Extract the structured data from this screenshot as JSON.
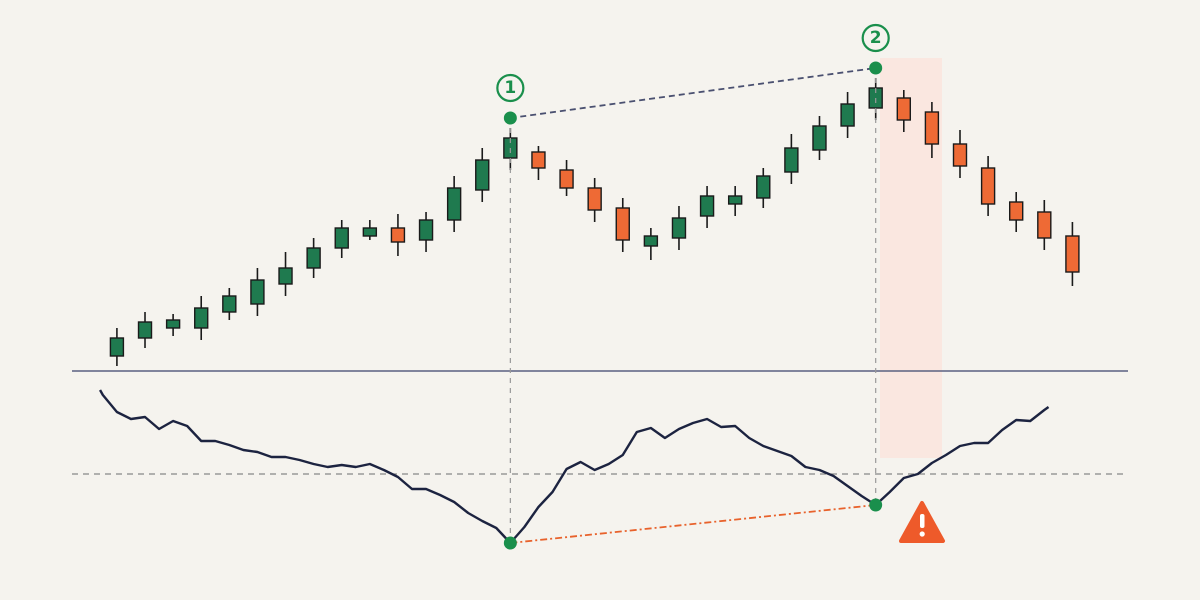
{
  "chart_data": [
    {
      "type": "candlestick",
      "x": [
        0,
        1,
        2,
        3,
        4,
        5,
        6,
        7,
        8,
        9,
        10,
        11,
        12,
        13,
        14,
        15,
        16,
        17,
        18,
        19,
        20,
        21,
        22,
        23,
        24,
        25,
        26,
        27,
        28,
        29,
        30,
        31,
        32,
        33,
        34
      ],
      "open": [
        11,
        15.5,
        18,
        18,
        22,
        24,
        29,
        33,
        38,
        41,
        43,
        40,
        45,
        52.5,
        60.5,
        62,
        57.5,
        53,
        48,
        38.5,
        40.5,
        46,
        49,
        50.5,
        57,
        62.5,
        68.5,
        73,
        75.5,
        72,
        64,
        58,
        49.5,
        47,
        41
      ],
      "high": [
        18,
        22,
        21.5,
        26,
        28,
        33,
        37,
        40.5,
        45,
        45,
        46.5,
        47,
        56,
        63,
        68,
        63.5,
        60,
        55.5,
        50.5,
        43,
        48.5,
        53.5,
        53.5,
        58,
        66.5,
        71,
        77,
        80.5,
        77.5,
        74.5,
        67.5,
        61,
        52,
        50,
        44.5
      ],
      "low": [
        8.5,
        13,
        16,
        15,
        20,
        21,
        26,
        30.5,
        35.5,
        40,
        36,
        37,
        42,
        49.5,
        57.5,
        55,
        51,
        44.5,
        37,
        35,
        37.5,
        43,
        46,
        48,
        54,
        60,
        65.5,
        70,
        67,
        60.5,
        55.5,
        46,
        42,
        37.5,
        28.5
      ],
      "close": [
        15.5,
        19.5,
        20,
        23,
        26,
        30,
        33,
        38,
        43,
        43,
        39.5,
        45,
        53,
        60,
        65.5,
        58,
        53,
        47.5,
        40,
        41,
        45.5,
        51,
        51,
        56,
        63,
        68.5,
        74,
        78,
        70,
        64,
        58.5,
        49,
        45,
        40.5,
        32
      ],
      "up_color": "#1f7a4f",
      "down_color": "#ee6a35",
      "xlim": [
        -4.16,
        38.54
      ],
      "ylim": [
        0,
        90
      ],
      "markers": [
        {
          "label": "1",
          "x": 14,
          "value": 70.5
        },
        {
          "label": "2",
          "x": 27,
          "value": 83
        }
      ],
      "marker_color": "#1a8f4c",
      "divergence_color": "#4a5070"
    },
    {
      "type": "line",
      "x": [
        -0.6,
        -0.5,
        0,
        0.5,
        1,
        1.5,
        2,
        2.5,
        3,
        3.5,
        4,
        4.5,
        5,
        5.5,
        6,
        6.5,
        7,
        7.5,
        8,
        8.5,
        9,
        9.5,
        10,
        10.5,
        11,
        11.5,
        12,
        12.5,
        13,
        13.5,
        14,
        14.5,
        15,
        15.5,
        16,
        16.5,
        17,
        17.5,
        18,
        18.5,
        19,
        19.5,
        20,
        20.5,
        21,
        21.5,
        22,
        22.5,
        23,
        23.5,
        24,
        24.5,
        25,
        25.5,
        26,
        26.5,
        27,
        27.5,
        28,
        28.5,
        29,
        29.5,
        30,
        30.5,
        31,
        31.5,
        32,
        32.5,
        33,
        33.15
      ],
      "values": [
        95,
        92.5,
        84,
        80.5,
        81.5,
        75.5,
        79.5,
        77,
        69.5,
        69.5,
        67.5,
        65,
        64,
        61.5,
        61.5,
        60,
        58,
        56.5,
        57.5,
        56.5,
        58,
        55,
        51.5,
        45.5,
        45.5,
        42.5,
        39,
        33.5,
        29.5,
        26,
        18.5,
        26.5,
        36.5,
        44,
        55.5,
        59,
        55,
        58,
        62.5,
        74,
        76,
        71,
        75.5,
        78.5,
        80.5,
        76.5,
        77,
        71,
        67,
        64.5,
        62,
        56.5,
        55,
        52,
        47,
        42,
        37.5,
        44,
        51,
        53,
        58.5,
        62.5,
        67,
        68.5,
        68.5,
        75,
        80,
        79.5,
        85,
        86.5
      ],
      "color": "#1c2340",
      "xlim": [
        -4.16,
        38.54
      ],
      "ylim": [
        0,
        100
      ],
      "reference": 53,
      "markers": [
        {
          "x": 14,
          "value": 18.5
        },
        {
          "x": 27,
          "value": 37.5
        }
      ],
      "marker_color": "#1a8f4c",
      "divergence_color": "#e8622c"
    }
  ]
}
